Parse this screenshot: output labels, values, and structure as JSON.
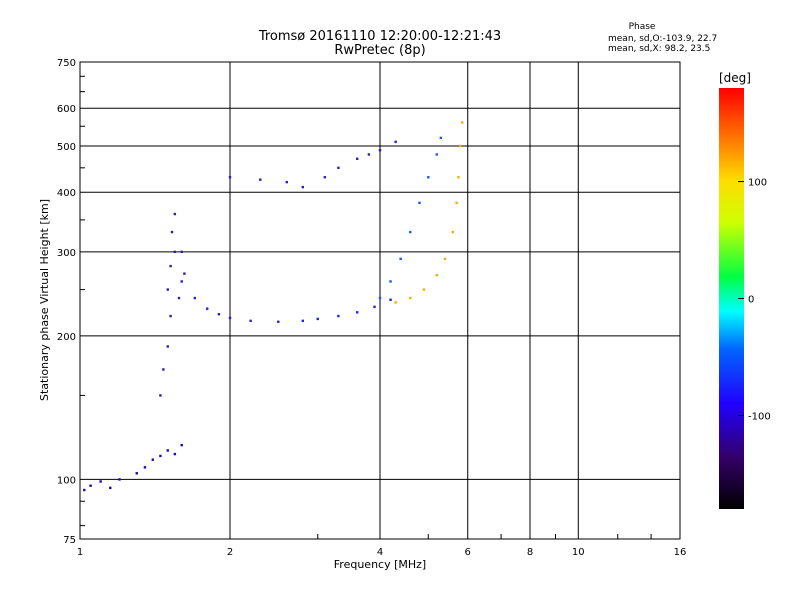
{
  "chart_data": {
    "type": "scatter",
    "title": "Tromsø 20161110 12:20:00-12:21:43",
    "subtitle": "RwPretec (8p)",
    "xlabel": "Frequency [MHz]",
    "ylabel": "Stationary phase Virtual Height [km]",
    "x_scale": "log",
    "y_scale": "log",
    "xlim": [
      1,
      16
    ],
    "ylim": [
      75,
      750
    ],
    "x_ticks": [
      "1",
      "2",
      "4",
      "6",
      "8",
      "10",
      "16"
    ],
    "x_tick_values": [
      1,
      2,
      4,
      6,
      8,
      10,
      16
    ],
    "y_ticks": [
      "75",
      "100",
      "200",
      "300",
      "400",
      "500",
      "600",
      "750"
    ],
    "y_tick_values": [
      75,
      100,
      200,
      300,
      400,
      500,
      600,
      750
    ],
    "grid": true,
    "phase_info": {
      "heading": "Phase",
      "line_o": "mean, sd,O:-103.9, 22.7",
      "line_x": "mean, sd,X:  98.2, 23.5"
    },
    "colorbar": {
      "label": "[deg]",
      "range": [
        -180,
        180
      ],
      "tick_labels": [
        "100",
        "0",
        "-100"
      ],
      "tick_values": [
        100,
        0,
        -100
      ]
    },
    "traces": [
      {
        "name": "",
        "color": "#2200cc",
        "phase": -130,
        "points": [
          [
            1.02,
            95
          ],
          [
            1.05,
            97
          ],
          [
            1.1,
            99
          ],
          [
            1.15,
            96
          ],
          [
            1.2,
            100
          ],
          [
            1.3,
            103
          ],
          [
            1.35,
            106
          ],
          [
            1.4,
            110
          ],
          [
            1.45,
            112
          ],
          [
            1.5,
            115
          ],
          [
            1.55,
            113
          ],
          [
            1.6,
            118
          ]
        ]
      },
      {
        "name": "",
        "color": "#3a1aa8",
        "phase": -145,
        "points": [
          [
            1.45,
            150
          ],
          [
            1.47,
            170
          ],
          [
            1.5,
            190
          ],
          [
            1.52,
            220
          ],
          [
            1.5,
            250
          ],
          [
            1.52,
            280
          ],
          [
            1.55,
            300
          ],
          [
            1.53,
            330
          ],
          [
            1.55,
            360
          ],
          [
            1.6,
            300
          ],
          [
            1.62,
            270
          ],
          [
            1.58,
            240
          ]
        ]
      },
      {
        "name": "",
        "color": "#1a22ee",
        "phase": -115,
        "points": [
          [
            1.6,
            260
          ],
          [
            1.7,
            240
          ],
          [
            1.8,
            228
          ],
          [
            1.9,
            222
          ],
          [
            2.0,
            218
          ],
          [
            2.2,
            215
          ],
          [
            2.5,
            214
          ],
          [
            2.8,
            215
          ],
          [
            3.0,
            217
          ],
          [
            3.3,
            220
          ],
          [
            3.6,
            224
          ],
          [
            3.9,
            230
          ],
          [
            4.2,
            238
          ]
        ]
      },
      {
        "name": "",
        "color": "#1a55ff",
        "phase": -100,
        "points": [
          [
            4.0,
            240
          ],
          [
            4.2,
            260
          ],
          [
            4.4,
            290
          ],
          [
            4.6,
            330
          ],
          [
            4.8,
            380
          ],
          [
            5.0,
            430
          ],
          [
            5.2,
            480
          ],
          [
            5.3,
            520
          ]
        ]
      },
      {
        "name": "",
        "color": "#ffaa00",
        "phase": 110,
        "points": [
          [
            4.3,
            235
          ],
          [
            4.6,
            240
          ],
          [
            4.9,
            250
          ],
          [
            5.2,
            268
          ],
          [
            5.4,
            290
          ],
          [
            5.6,
            330
          ],
          [
            5.7,
            380
          ],
          [
            5.75,
            430
          ],
          [
            5.8,
            500
          ],
          [
            5.85,
            560
          ]
        ]
      },
      {
        "name": "",
        "color": "#2222cc",
        "phase": -120,
        "points": [
          [
            2.0,
            430
          ],
          [
            2.3,
            425
          ],
          [
            2.6,
            420
          ],
          [
            2.8,
            410
          ],
          [
            3.1,
            430
          ],
          [
            3.3,
            450
          ],
          [
            3.6,
            470
          ],
          [
            3.8,
            480
          ],
          [
            4.0,
            490
          ],
          [
            4.3,
            510
          ]
        ]
      }
    ]
  }
}
